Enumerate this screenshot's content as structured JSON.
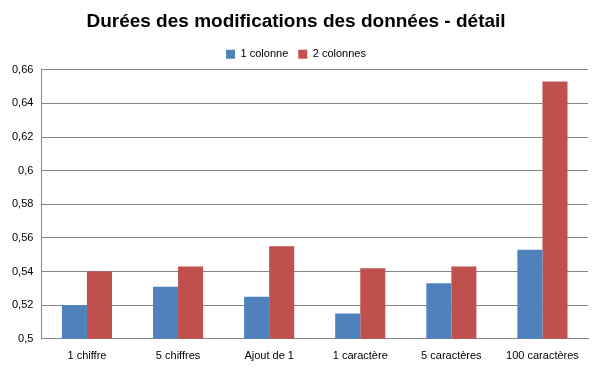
{
  "chart_data": {
    "type": "bar",
    "title": "Durées des modifications des données - détail",
    "categories": [
      "1 chiffre",
      "5 chiffres",
      "Ajout de 1",
      "1 caractère",
      "5 caractères",
      "100 caractères"
    ],
    "series": [
      {
        "name": "1 colonne",
        "color": "#4f81bd",
        "values": [
          0.52,
          0.531,
          0.525,
          0.515,
          0.533,
          0.553
        ]
      },
      {
        "name": "2 colonnes",
        "color": "#c0504d",
        "values": [
          0.54,
          0.543,
          0.555,
          0.542,
          0.543,
          0.653
        ]
      }
    ],
    "ylim": [
      0.5,
      0.66
    ],
    "yticks": [
      {
        "value": 0.5,
        "label": "0,5"
      },
      {
        "value": 0.52,
        "label": "0,52"
      },
      {
        "value": 0.54,
        "label": "0,54"
      },
      {
        "value": 0.56,
        "label": "0,56"
      },
      {
        "value": 0.58,
        "label": "0,58"
      },
      {
        "value": 0.6,
        "label": "0,6"
      },
      {
        "value": 0.62,
        "label": "0,62"
      },
      {
        "value": 0.64,
        "label": "0,64"
      },
      {
        "value": 0.66,
        "label": "0,66"
      }
    ],
    "grid": true,
    "legend": "top"
  }
}
